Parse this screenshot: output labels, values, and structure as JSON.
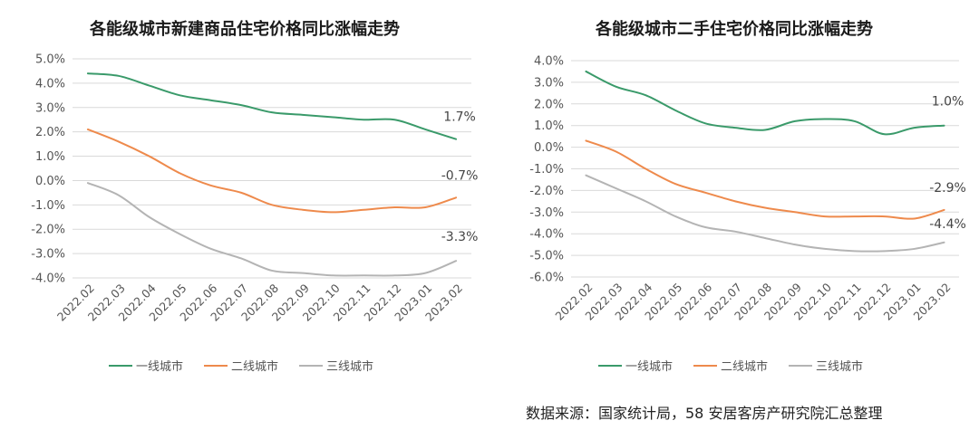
{
  "source_note": "数据来源：国家统计局，58 安居客房产研究院汇总整理",
  "chart_data": [
    {
      "type": "line",
      "title": "各能级城市新建商品住宅价格同比涨幅走势",
      "categories": [
        "2022.02",
        "2022.03",
        "2022.04",
        "2022.05",
        "2022.06",
        "2022.07",
        "2022.08",
        "2022.09",
        "2022.10",
        "2022.11",
        "2022.12",
        "2023.01",
        "2023.02"
      ],
      "ylim": [
        -4.0,
        5.0
      ],
      "yticks": [
        5.0,
        4.0,
        3.0,
        2.0,
        1.0,
        0.0,
        -1.0,
        -2.0,
        -3.0,
        -4.0
      ],
      "ytick_labels": [
        "5.0%",
        "4.0%",
        "3.0%",
        "2.0%",
        "1.0%",
        "0.0%",
        "-1.0%",
        "-2.0%",
        "-3.0%",
        "-4.0%"
      ],
      "series": [
        {
          "name": "一线城市",
          "color": "#3a9a6a",
          "values": [
            4.4,
            4.3,
            3.9,
            3.5,
            3.3,
            3.1,
            2.8,
            2.7,
            2.6,
            2.5,
            2.5,
            2.1,
            1.7
          ],
          "end_label": "1.7%"
        },
        {
          "name": "二线城市",
          "color": "#ee8a4c",
          "values": [
            2.1,
            1.6,
            1.0,
            0.3,
            -0.2,
            -0.5,
            -1.0,
            -1.2,
            -1.3,
            -1.2,
            -1.1,
            -1.1,
            -0.7
          ],
          "end_label": "-0.7%"
        },
        {
          "name": "三线城市",
          "color": "#b4b4b4",
          "values": [
            -0.1,
            -0.6,
            -1.5,
            -2.2,
            -2.8,
            -3.2,
            -3.7,
            -3.8,
            -3.9,
            -3.9,
            -3.9,
            -3.8,
            -3.3
          ],
          "end_label": "-3.3%"
        }
      ],
      "legend": [
        "一线城市",
        "二线城市",
        "三线城市"
      ]
    },
    {
      "type": "line",
      "title": "各能级城市二手住宅价格同比涨幅走势",
      "categories": [
        "2022.02",
        "2022.03",
        "2022.04",
        "2022.05",
        "2022.06",
        "2022.07",
        "2022.08",
        "2022.09",
        "2022.10",
        "2022.11",
        "2022.12",
        "2023.01",
        "2023.02"
      ],
      "ylim": [
        -6.0,
        4.0
      ],
      "yticks": [
        4.0,
        3.0,
        2.0,
        1.0,
        0.0,
        -1.0,
        -2.0,
        -3.0,
        -4.0,
        -5.0,
        -6.0
      ],
      "ytick_labels": [
        "4.0%",
        "3.0%",
        "2.0%",
        "1.0%",
        "0.0%",
        "-1.0%",
        "-2.0%",
        "-3.0%",
        "-4.0%",
        "-5.0%",
        "-6.0%"
      ],
      "series": [
        {
          "name": "一线城市",
          "color": "#3a9a6a",
          "values": [
            3.5,
            2.8,
            2.4,
            1.7,
            1.1,
            0.9,
            0.8,
            1.2,
            1.3,
            1.2,
            0.6,
            0.9,
            1.0
          ],
          "end_label": "1.0%"
        },
        {
          "name": "二线城市",
          "color": "#ee8a4c",
          "values": [
            0.3,
            -0.2,
            -1.0,
            -1.7,
            -2.1,
            -2.5,
            -2.8,
            -3.0,
            -3.2,
            -3.2,
            -3.2,
            -3.3,
            -2.9
          ],
          "end_label": "-2.9%"
        },
        {
          "name": "三线城市",
          "color": "#b4b4b4",
          "values": [
            -1.3,
            -1.9,
            -2.5,
            -3.2,
            -3.7,
            -3.9,
            -4.2,
            -4.5,
            -4.7,
            -4.8,
            -4.8,
            -4.7,
            -4.4
          ],
          "end_label": "-4.4%"
        }
      ],
      "legend": [
        "一线城市",
        "二线城市",
        "三线城市"
      ]
    }
  ]
}
